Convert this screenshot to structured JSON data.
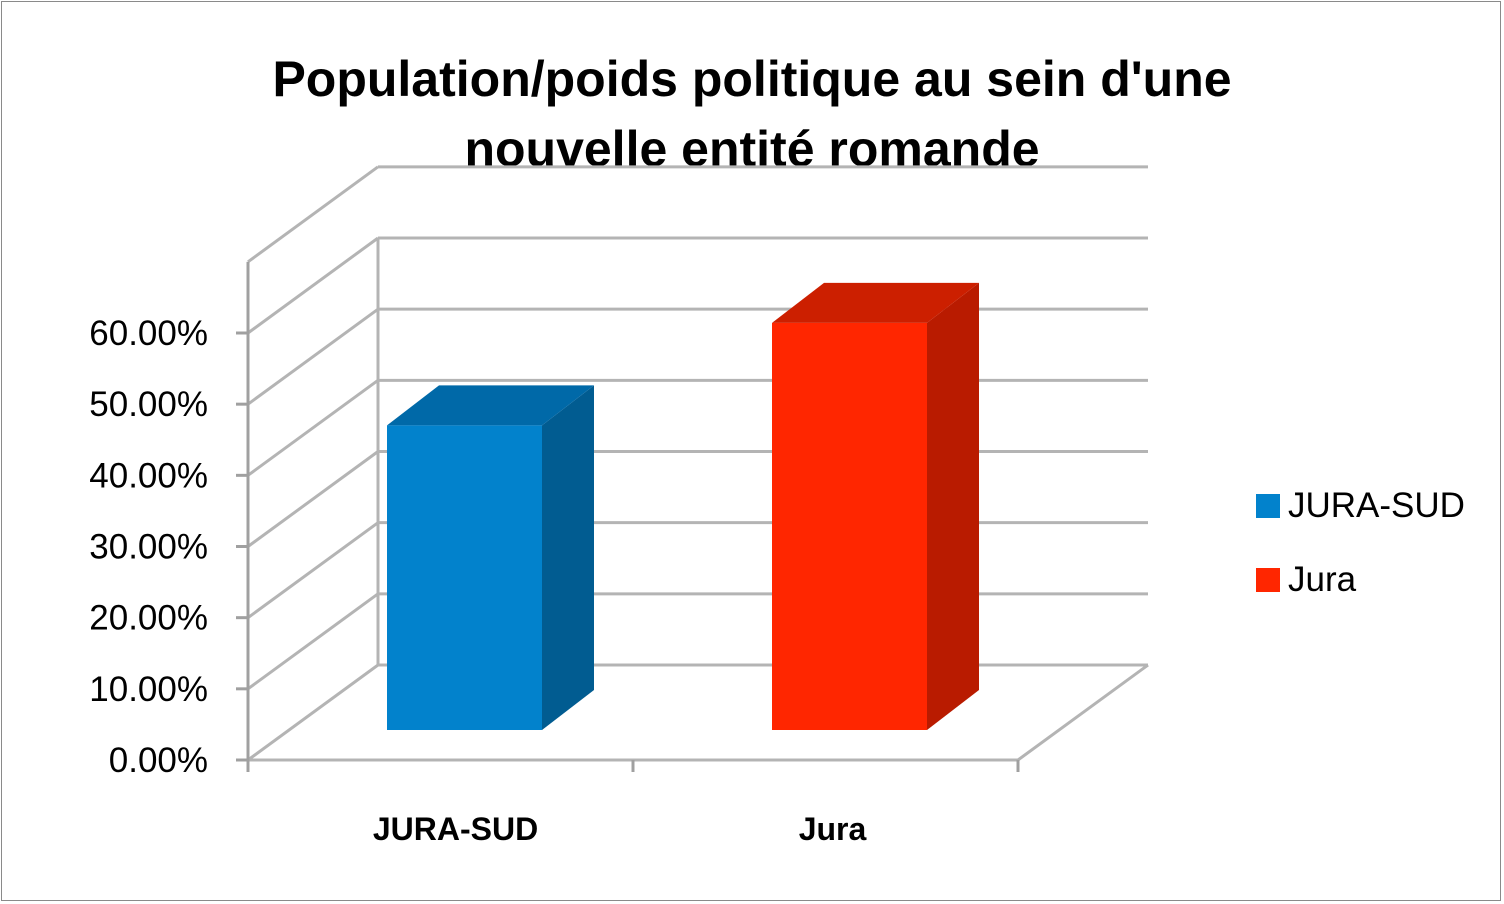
{
  "chart_data": {
    "type": "bar",
    "variant": "3d-column",
    "title_lines": [
      "Population/poids politique au sein d'une",
      "nouvelle entité romande"
    ],
    "categories": [
      "JURA-SUD",
      "Jura"
    ],
    "series": [
      {
        "name": "JURA-SUD",
        "values": [
          42.8,
          null
        ],
        "color": "#0282cc",
        "side_color": "#015c91",
        "top_color": "#0069a8"
      },
      {
        "name": "Jura",
        "values": [
          null,
          57.2
        ],
        "color": "#ff2600",
        "side_color": "#b91b00",
        "top_color": "#cc1f00"
      }
    ],
    "y_ticks": [
      "0.00%",
      "10.00%",
      "20.00%",
      "30.00%",
      "40.00%",
      "50.00%",
      "60.00%"
    ],
    "ylim": [
      0,
      60
    ],
    "grid": true,
    "legend_position": "right",
    "colors": {
      "gridline": "#b4b4b4",
      "axis": "#a0a0a0",
      "frame": "#8a8a8a"
    }
  }
}
